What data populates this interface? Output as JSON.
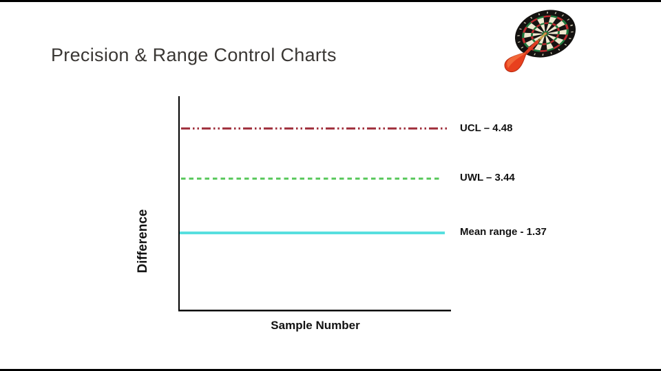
{
  "slide": {
    "title": "Precision & Range Control Charts"
  },
  "chart_data": {
    "type": "line",
    "title": "",
    "xlabel": "Sample Number",
    "ylabel": "Difference",
    "grid": false,
    "axis_color": "#000000",
    "x_tick_labels": [],
    "y_tick_labels": [],
    "series": [
      {
        "name": "UCL",
        "value": 4.48,
        "label": "UCL – 4.48",
        "color": "#9E2B38",
        "line_style": "dash-dot-dot"
      },
      {
        "name": "UWL",
        "value": 3.44,
        "label": "UWL – 3.44",
        "color": "#55C758",
        "line_style": "dashed"
      },
      {
        "name": "Mean range",
        "value": 1.37,
        "label": "Mean range - 1.37",
        "color": "#57DFDF",
        "line_style": "solid"
      }
    ],
    "legend_position": "labels right of each line"
  },
  "decoration": {
    "image": "dartboard with red dart in bullseye"
  }
}
